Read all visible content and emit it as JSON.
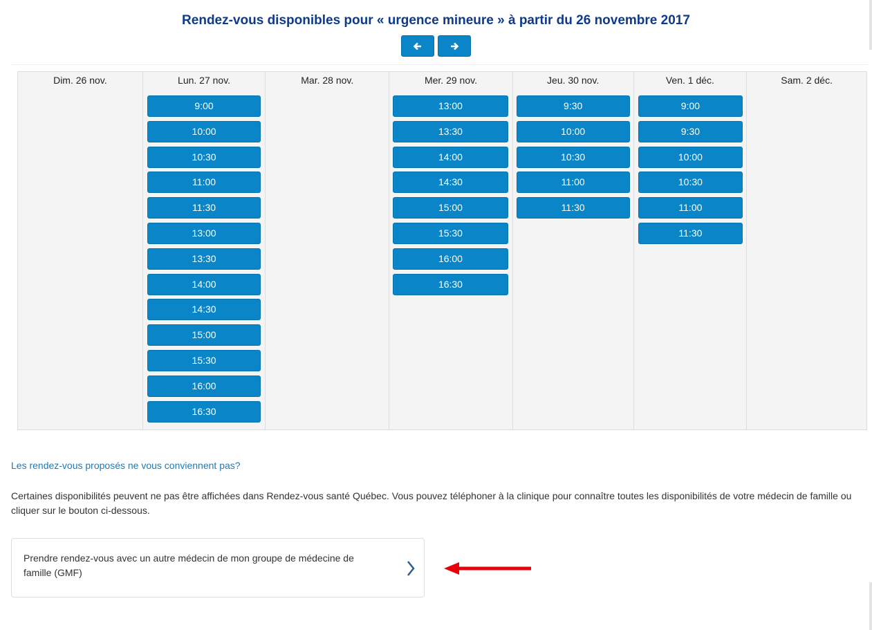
{
  "header": {
    "title": "Rendez-vous disponibles pour « urgence mineure » à partir du 26 novembre 2017",
    "prev_icon": "arrow-left-icon",
    "next_icon": "arrow-right-icon"
  },
  "calendar": {
    "days": [
      {
        "label": "Dim. 26 nov.",
        "slots": []
      },
      {
        "label": "Lun. 27 nov.",
        "slots": [
          "9:00",
          "10:00",
          "10:30",
          "11:00",
          "11:30",
          "13:00",
          "13:30",
          "14:00",
          "14:30",
          "15:00",
          "15:30",
          "16:00",
          "16:30"
        ]
      },
      {
        "label": "Mar. 28 nov.",
        "slots": []
      },
      {
        "label": "Mer. 29 nov.",
        "slots": [
          "13:00",
          "13:30",
          "14:00",
          "14:30",
          "15:00",
          "15:30",
          "16:00",
          "16:30"
        ]
      },
      {
        "label": "Jeu. 30 nov.",
        "slots": [
          "9:30",
          "10:00",
          "10:30",
          "11:00",
          "11:30"
        ]
      },
      {
        "label": "Ven. 1 déc.",
        "slots": [
          "9:00",
          "9:30",
          "10:00",
          "10:30",
          "11:00",
          "11:30"
        ]
      },
      {
        "label": "Sam. 2 déc.",
        "slots": []
      }
    ]
  },
  "footer": {
    "question": "Les rendez-vous proposés ne vous conviennent pas?",
    "info": "Certaines disponibilités peuvent ne pas être affichées dans Rendez-vous santé Québec. Vous pouvez téléphoner à la clinique pour connaître toutes les disponibilités de votre médecin de famille ou cliquer sur le bouton ci-dessous.",
    "card_label": "Prendre rendez-vous avec un autre médecin de mon groupe de médecine de famille (GMF)"
  },
  "colors": {
    "slot": "#0a86c8",
    "title": "#0e3a8c",
    "link": "#1a7bb8",
    "annotation_arrow": "#e8000b"
  }
}
